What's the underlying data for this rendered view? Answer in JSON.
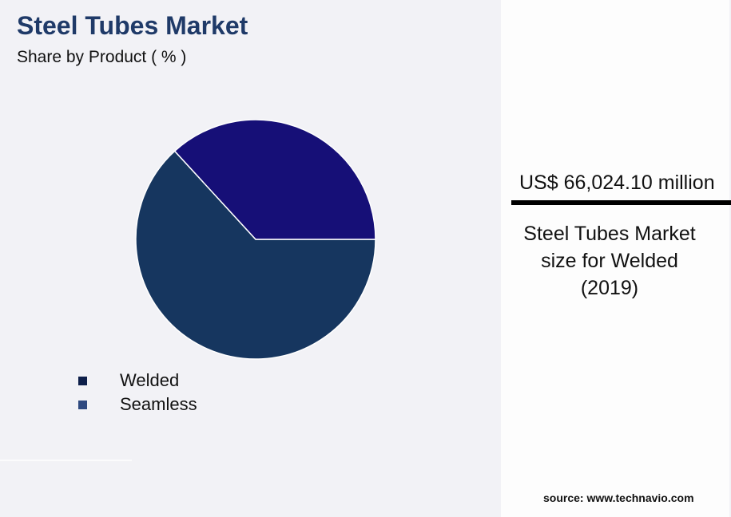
{
  "chart_data": {
    "type": "pie",
    "title": "Steel Tubes Market",
    "subtitle": "Share by Product ( % )",
    "categories": [
      "Welded",
      "Seamless"
    ],
    "values": [
      63.2,
      36.8
    ],
    "slice_colors": [
      "#16365f",
      "#160f77"
    ],
    "legend_colors": [
      "#0e1f4a",
      "#2f4a80"
    ],
    "legend_placement": "bottom-left"
  },
  "highlight": {
    "value": "US$ 66,024.10 million",
    "caption_lines": [
      "Steel Tubes Market",
      "size for Welded",
      "(2019)"
    ]
  },
  "source": "source: www.technavio.com"
}
